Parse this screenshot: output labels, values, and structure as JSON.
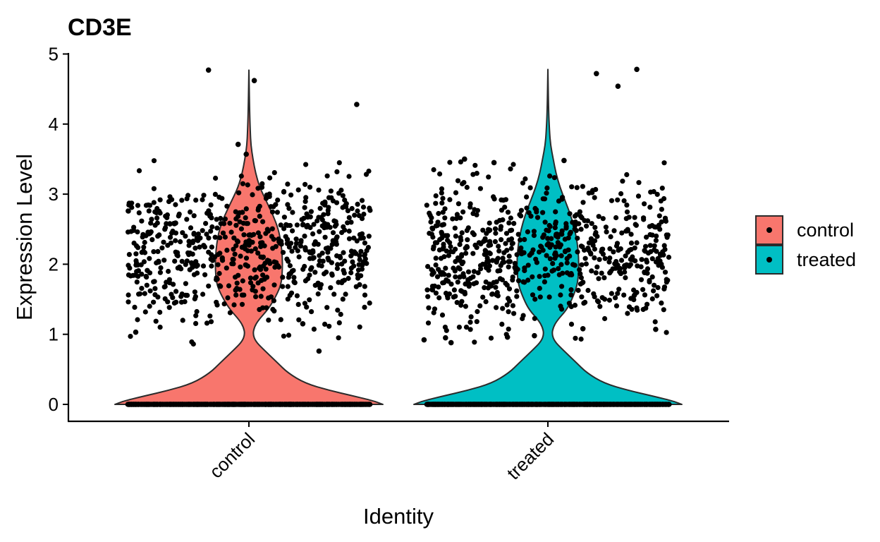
{
  "chart_data": {
    "type": "violin",
    "title": "CD3E",
    "xlabel": "Identity",
    "ylabel": "Expression Level",
    "ylim": [
      -0.23,
      5.03
    ],
    "yticks": [
      0,
      1,
      2,
      3,
      4,
      5
    ],
    "grid": false,
    "legend_position": "right",
    "categories": [
      "control",
      "treated"
    ],
    "groups": [
      {
        "name": "control",
        "color": "#F8766D",
        "max": 4.77,
        "density_profile": [
          [
            0.0,
            1.0
          ],
          [
            0.05,
            0.93
          ],
          [
            0.12,
            0.78
          ],
          [
            0.2,
            0.6
          ],
          [
            0.3,
            0.42
          ],
          [
            0.45,
            0.29
          ],
          [
            0.6,
            0.21
          ],
          [
            0.8,
            0.1
          ],
          [
            0.9,
            0.05
          ],
          [
            1.0,
            0.03
          ],
          [
            1.1,
            0.04
          ],
          [
            1.2,
            0.07
          ],
          [
            1.35,
            0.14
          ],
          [
            1.5,
            0.19
          ],
          [
            1.7,
            0.24
          ],
          [
            1.9,
            0.25
          ],
          [
            2.1,
            0.25
          ],
          [
            2.3,
            0.24
          ],
          [
            2.5,
            0.22
          ],
          [
            2.7,
            0.18
          ],
          [
            2.9,
            0.13
          ],
          [
            3.1,
            0.08
          ],
          [
            3.3,
            0.05
          ],
          [
            3.5,
            0.03
          ],
          [
            3.7,
            0.015
          ],
          [
            3.9,
            0.01
          ],
          [
            4.2,
            0.005
          ],
          [
            4.77,
            0.0
          ]
        ],
        "outlier_points": [
          [
            -0.15,
            4.77
          ],
          [
            0.02,
            4.62
          ],
          [
            -0.04,
            3.71
          ],
          [
            0.4,
            4.28
          ],
          [
            0.65,
            0.92
          ],
          [
            0.75,
            0.88
          ],
          [
            0.26,
            0.76
          ],
          [
            0.8,
            3.5
          ],
          [
            -0.01,
            3.57
          ],
          [
            -0.42,
            1.03
          ],
          [
            0.2,
            1.15
          ]
        ],
        "zero_count": 1500,
        "expressing_count": 700
      },
      {
        "name": "treated",
        "color": "#00BFC4",
        "max": 4.78,
        "density_profile": [
          [
            0.0,
            1.0
          ],
          [
            0.05,
            0.93
          ],
          [
            0.12,
            0.78
          ],
          [
            0.2,
            0.6
          ],
          [
            0.3,
            0.42
          ],
          [
            0.45,
            0.29
          ],
          [
            0.6,
            0.21
          ],
          [
            0.8,
            0.1
          ],
          [
            0.9,
            0.05
          ],
          [
            1.0,
            0.03
          ],
          [
            1.1,
            0.04
          ],
          [
            1.2,
            0.07
          ],
          [
            1.35,
            0.14
          ],
          [
            1.5,
            0.18
          ],
          [
            1.7,
            0.22
          ],
          [
            1.9,
            0.23
          ],
          [
            2.1,
            0.23
          ],
          [
            2.3,
            0.22
          ],
          [
            2.5,
            0.2
          ],
          [
            2.7,
            0.17
          ],
          [
            2.9,
            0.13
          ],
          [
            3.1,
            0.09
          ],
          [
            3.3,
            0.06
          ],
          [
            3.5,
            0.04
          ],
          [
            3.7,
            0.02
          ],
          [
            3.9,
            0.012
          ],
          [
            4.2,
            0.005
          ],
          [
            4.78,
            0.0
          ]
        ],
        "outlier_points": [
          [
            0.18,
            4.72
          ],
          [
            0.26,
            4.54
          ],
          [
            0.33,
            4.78
          ],
          [
            0.06,
            3.48
          ],
          [
            -0.2,
            3.45
          ],
          [
            -0.15,
            0.96
          ],
          [
            -0.05,
            0.98
          ],
          [
            0.13,
            1.08
          ],
          [
            0.4,
            1.07
          ],
          [
            -0.38,
            0.95
          ]
        ],
        "zero_count": 1500,
        "expressing_count": 700
      }
    ]
  },
  "legend": {
    "items": [
      {
        "label": "control",
        "color": "#F8766D"
      },
      {
        "label": "treated",
        "color": "#00BFC4"
      }
    ]
  }
}
